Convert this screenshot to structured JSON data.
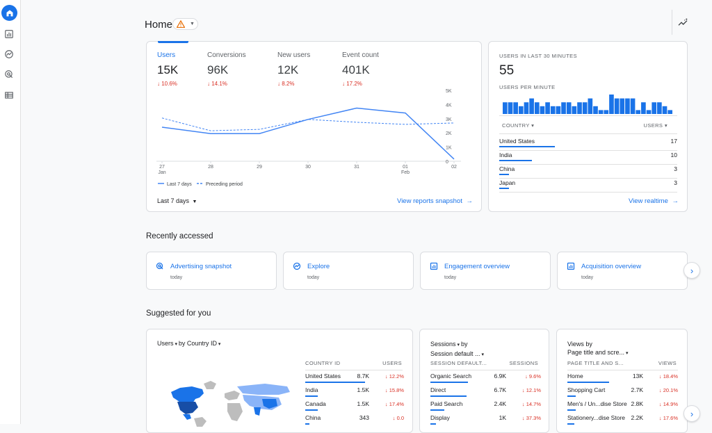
{
  "header": {
    "title": "Home"
  },
  "overview": {
    "metrics": [
      {
        "label": "Users",
        "value": "15K",
        "change": "10.6%"
      },
      {
        "label": "Conversions",
        "value": "96K",
        "change": "14.1%"
      },
      {
        "label": "New users",
        "value": "12K",
        "change": "8.2%"
      },
      {
        "label": "Event count",
        "value": "401K",
        "change": "17.2%"
      }
    ],
    "range": "Last 7 days",
    "link": "View reports snapshot"
  },
  "chart_data": {
    "type": "line",
    "x": [
      "27\nJan",
      "28",
      "29",
      "30",
      "31",
      "01\nFeb",
      "02"
    ],
    "y_ticks": [
      "5K",
      "4K",
      "3K",
      "2K",
      "1K",
      "0"
    ],
    "ylim": [
      0,
      5000
    ],
    "series": [
      {
        "name": "Last 7 days",
        "values": [
          2400,
          1950,
          1950,
          2950,
          3750,
          3400,
          150
        ],
        "style": "solid"
      },
      {
        "name": "Preceding period",
        "values": [
          3050,
          2150,
          2250,
          2950,
          2750,
          2600,
          2700
        ],
        "style": "dashed"
      }
    ],
    "legend_position": "bottom-left"
  },
  "realtime": {
    "title": "USERS IN LAST 30 MINUTES",
    "value": "55",
    "subtitle": "USERS PER MINUTE",
    "per_minute": [
      3,
      3,
      3,
      2,
      3,
      4,
      3,
      2,
      3,
      2,
      2,
      3,
      3,
      2,
      3,
      3,
      4,
      2,
      1,
      1,
      5,
      4,
      4,
      4,
      4,
      1,
      3,
      1,
      3,
      3,
      2,
      1
    ],
    "col_country": "COUNTRY",
    "col_users": "USERS",
    "rows": [
      {
        "name": "United States",
        "value": "17",
        "frac": 1.0
      },
      {
        "name": "India",
        "value": "10",
        "frac": 0.59
      },
      {
        "name": "China",
        "value": "3",
        "frac": 0.18
      },
      {
        "name": "Japan",
        "value": "3",
        "frac": 0.18
      }
    ],
    "link": "View realtime"
  },
  "recent": {
    "title": "Recently accessed",
    "items": [
      {
        "name": "Advertising snapshot",
        "when": "today",
        "icon": "advertising-icon"
      },
      {
        "name": "Explore",
        "when": "today",
        "icon": "explore-icon"
      },
      {
        "name": "Engagement overview",
        "when": "today",
        "icon": "report-icon"
      },
      {
        "name": "Acquisition overview",
        "when": "today",
        "icon": "report-icon"
      }
    ]
  },
  "suggested": {
    "title": "Suggested for you",
    "card1": {
      "dim1": "Users",
      "dim2": "by Country ID",
      "col1": "COUNTRY ID",
      "col2": "USERS",
      "rows": [
        {
          "name": "United States",
          "value": "8.7K",
          "change": "12.2%"
        },
        {
          "name": "India",
          "value": "1.5K",
          "change": "15.8%"
        },
        {
          "name": "Canada",
          "value": "1.5K",
          "change": "17.4%"
        },
        {
          "name": "China",
          "value": "343",
          "change": "0.0"
        }
      ]
    },
    "card2": {
      "line1": "Sessions",
      "by": "by",
      "line2": "Session default ...",
      "col1": "SESSION DEFAULT...",
      "col2": "SESSIONS",
      "rows": [
        {
          "name": "Organic Search",
          "value": "6.9K",
          "change": "9.6%"
        },
        {
          "name": "Direct",
          "value": "6.7K",
          "change": "12.1%"
        },
        {
          "name": "Paid Search",
          "value": "2.4K",
          "change": "14.7%"
        },
        {
          "name": "Display",
          "value": "1K",
          "change": "37.3%"
        }
      ]
    },
    "card3": {
      "line1": "Views by",
      "line2": "Page title and scre...",
      "col1": "PAGE TITLE AND S...",
      "col2": "VIEWS",
      "rows": [
        {
          "name": "Home",
          "value": "13K",
          "change": "18.4%"
        },
        {
          "name": "Shopping Cart",
          "value": "2.7K",
          "change": "20.1%"
        },
        {
          "name": "Men's / Un...dise Store",
          "value": "2.8K",
          "change": "14.9%"
        },
        {
          "name": "Stationery...dise Store",
          "value": "2.2K",
          "change": "17.6%"
        }
      ]
    }
  }
}
